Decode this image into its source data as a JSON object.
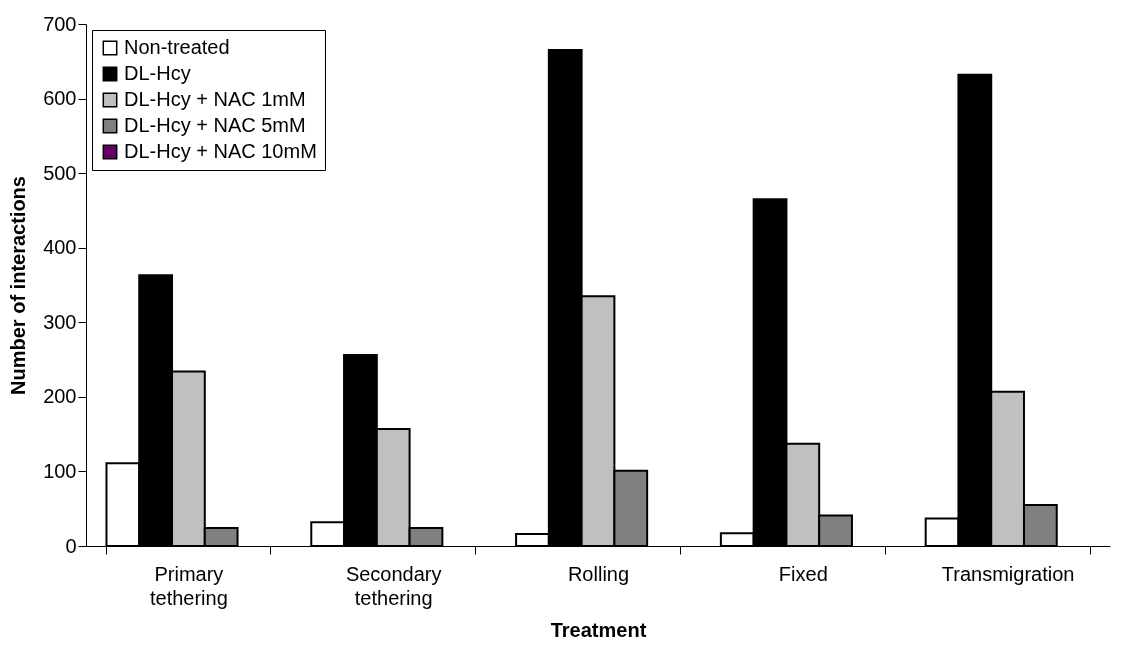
{
  "chart_data": {
    "type": "bar",
    "xlabel": "Treatment",
    "ylabel": "Number of interactions",
    "categories": [
      "Primary tethering",
      "Secondary tethering",
      "Rolling",
      "Fixed",
      "Transmigration"
    ],
    "series": [
      {
        "name": "Non-treated",
        "color": "#ffffff",
        "values": [
          111,
          32,
          16,
          17,
          37
        ]
      },
      {
        "name": "DL-Hcy",
        "color": "#000000",
        "values": [
          363,
          256,
          665,
          465,
          632
        ]
      },
      {
        "name": "DL-Hcy + NAC 1mM",
        "color": "#c0c0c0",
        "values": [
          234,
          157,
          335,
          137,
          207
        ]
      },
      {
        "name": "DL-Hcy + NAC 5mM",
        "color": "#808080",
        "values": [
          24,
          24,
          101,
          41,
          55
        ]
      },
      {
        "name": "DL-Hcy + NAC 10mM",
        "color": "#660066",
        "values": [
          null,
          null,
          null,
          null,
          null
        ]
      }
    ],
    "ylim": [
      0,
      700
    ],
    "yticks": [
      0,
      100,
      200,
      300,
      400,
      500,
      600,
      700
    ],
    "grid": false,
    "legend": "top left"
  }
}
